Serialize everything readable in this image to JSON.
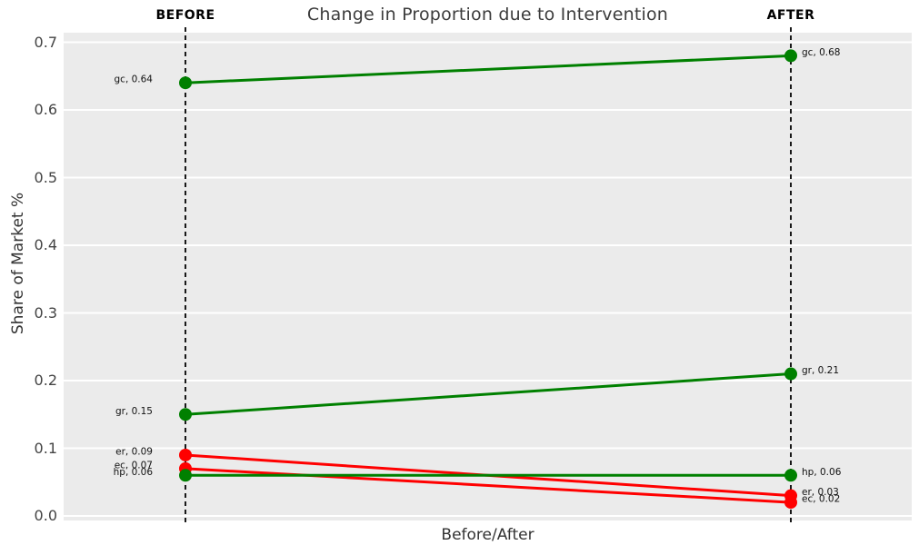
{
  "chart_data": {
    "type": "line",
    "subtype": "slopegraph-before-after",
    "title": "Change in Proportion due to Intervention",
    "xlabel": "Before/After",
    "ylabel": "Share of Market %",
    "x_categories": [
      "BEFORE",
      "AFTER"
    ],
    "ylim": [
      0.0,
      0.7
    ],
    "yticks": [
      "0.0",
      "0.1",
      "0.2",
      "0.3",
      "0.4",
      "0.5",
      "0.6",
      "0.7"
    ],
    "grid": "horizontal white major gridlines on gray panel",
    "legend": "none",
    "series": [
      {
        "name": "gc",
        "before": 0.64,
        "after": 0.68,
        "trend": "increase",
        "color": "#008000",
        "label_before": "gc, 0.64",
        "label_after": "gc, 0.68"
      },
      {
        "name": "gr",
        "before": 0.15,
        "after": 0.21,
        "trend": "increase",
        "color": "#008000",
        "label_before": "gr, 0.15",
        "label_after": "gr, 0.21"
      },
      {
        "name": "er",
        "before": 0.09,
        "after": 0.03,
        "trend": "decrease",
        "color": "#FF0000",
        "label_before": "er, 0.09",
        "label_after": "er, 0.03"
      },
      {
        "name": "ec",
        "before": 0.07,
        "after": 0.02,
        "trend": "decrease",
        "color": "#FF0000",
        "label_before": "ec, 0.07",
        "label_after": "ec, 0.02"
      },
      {
        "name": "hp",
        "before": 0.06,
        "after": 0.06,
        "trend": "same",
        "color": "#008000",
        "label_before": "hp, 0.06",
        "label_after": "hp, 0.06"
      }
    ],
    "colors": {
      "panel_background": "#EBEBEB",
      "gridline": "#FFFFFF",
      "increase": "#008000",
      "decrease": "#FF0000",
      "vline": "#000000"
    }
  }
}
